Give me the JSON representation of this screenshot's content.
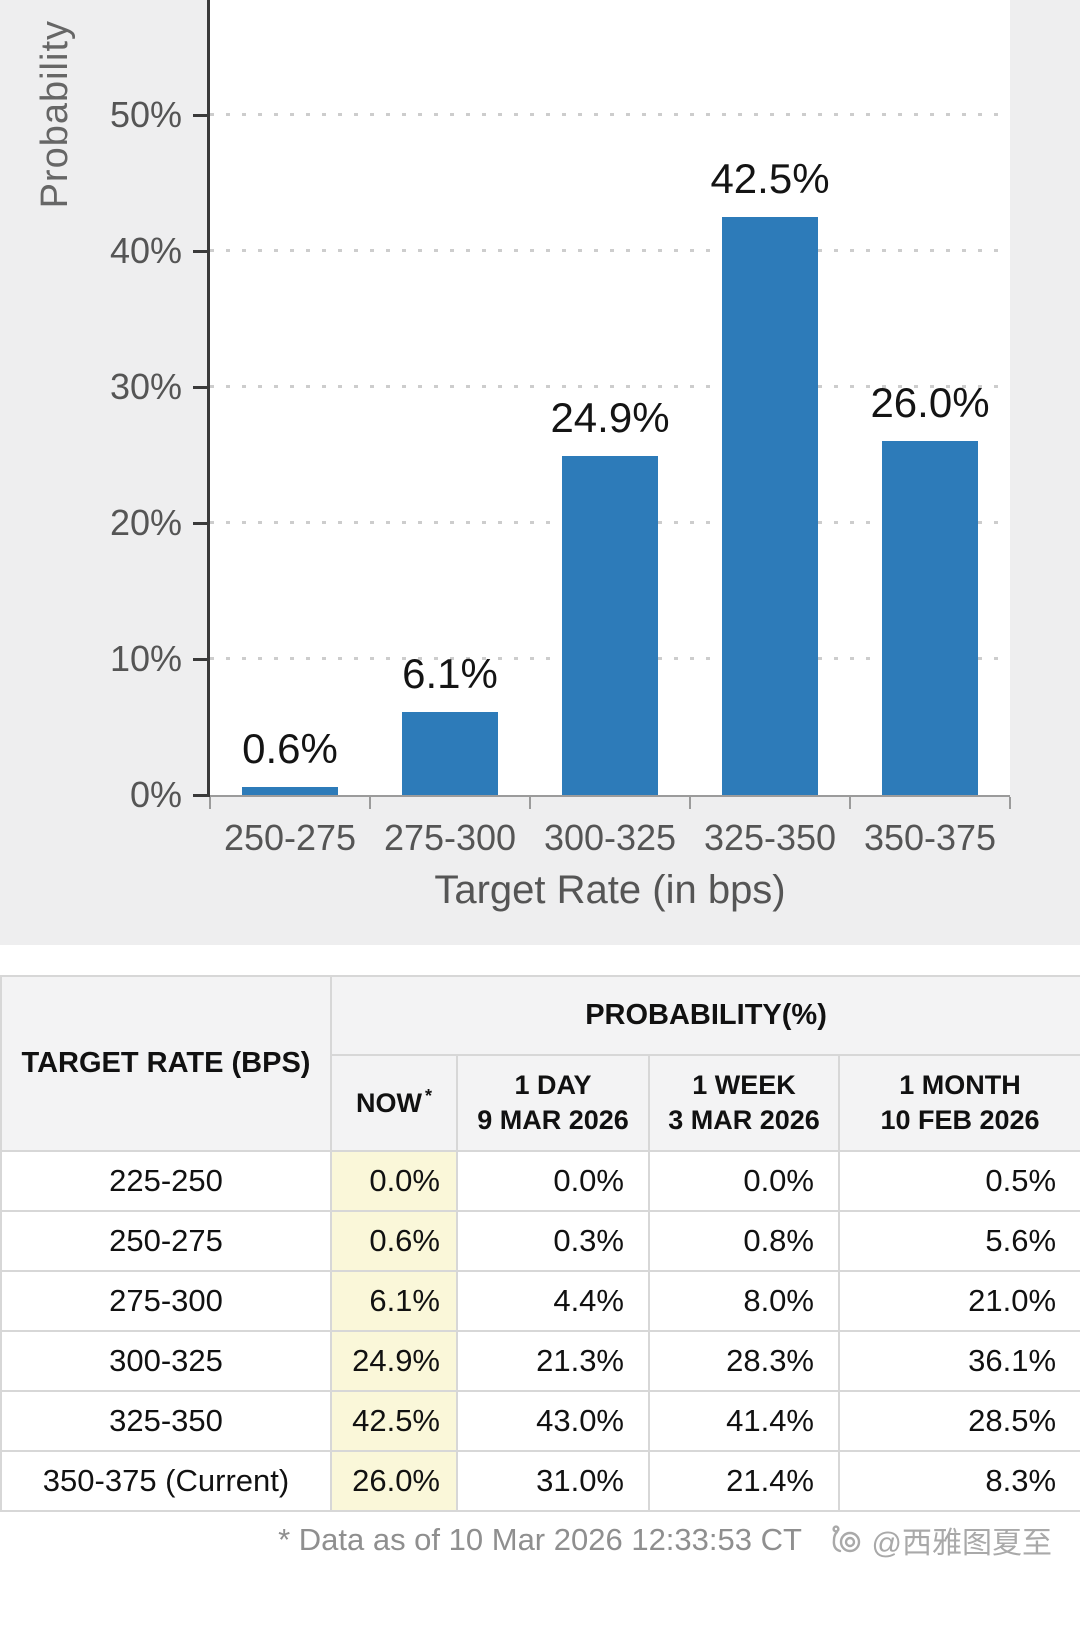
{
  "chart": {
    "ylabel": "Probability",
    "xlabel": "Target Rate (in bps)",
    "y_ticks": [
      {
        "value": 0,
        "label": "0%"
      },
      {
        "value": 10,
        "label": "10%"
      },
      {
        "value": 20,
        "label": "20%"
      },
      {
        "value": 30,
        "label": "30%"
      },
      {
        "value": 40,
        "label": "40%"
      },
      {
        "value": 50,
        "label": "50%"
      }
    ],
    "grid_values": [
      10,
      20,
      30,
      40,
      50
    ],
    "bar_color": "#2d7bb9"
  },
  "chart_data": {
    "type": "bar",
    "categories": [
      "250-275",
      "275-300",
      "300-325",
      "325-350",
      "350-375"
    ],
    "values": [
      0.6,
      6.1,
      24.9,
      42.5,
      26.0
    ],
    "labels": [
      "0.6%",
      "6.1%",
      "24.9%",
      "42.5%",
      "26.0%"
    ],
    "title": "",
    "xlabel": "Target Rate (in bps)",
    "ylabel": "Probability",
    "ylim": [
      0,
      58.5
    ],
    "grid": "horizontal dotted at 10% steps",
    "legend": "none"
  },
  "table": {
    "col1_header": "TARGET RATE (BPS)",
    "group_header": "PROBABILITY(%)",
    "columns": [
      {
        "label": "NOW",
        "sup": "*",
        "sub": ""
      },
      {
        "label": "1 DAY",
        "sub": "9 MAR 2026"
      },
      {
        "label": "1 WEEK",
        "sub": "3 MAR 2026"
      },
      {
        "label": "1 MONTH",
        "sub": "10 FEB 2026"
      }
    ],
    "rows": [
      {
        "rate": "225-250",
        "now": "0.0%",
        "day": "0.0%",
        "week": "0.0%",
        "month": "0.5%"
      },
      {
        "rate": "250-275",
        "now": "0.6%",
        "day": "0.3%",
        "week": "0.8%",
        "month": "5.6%"
      },
      {
        "rate": "275-300",
        "now": "6.1%",
        "day": "4.4%",
        "week": "8.0%",
        "month": "21.0%"
      },
      {
        "rate": "300-325",
        "now": "24.9%",
        "day": "21.3%",
        "week": "28.3%",
        "month": "36.1%"
      },
      {
        "rate": "325-350",
        "now": "42.5%",
        "day": "43.0%",
        "week": "41.4%",
        "month": "28.5%"
      },
      {
        "rate": "350-375 (Current)",
        "now": "26.0%",
        "day": "31.0%",
        "week": "21.4%",
        "month": "8.3%"
      }
    ],
    "now_highlight_color": "#faf7d9"
  },
  "footer": {
    "note": "* Data as of 10 Mar 2026 12:33:53 CT",
    "watermark": "@西雅图夏至"
  }
}
